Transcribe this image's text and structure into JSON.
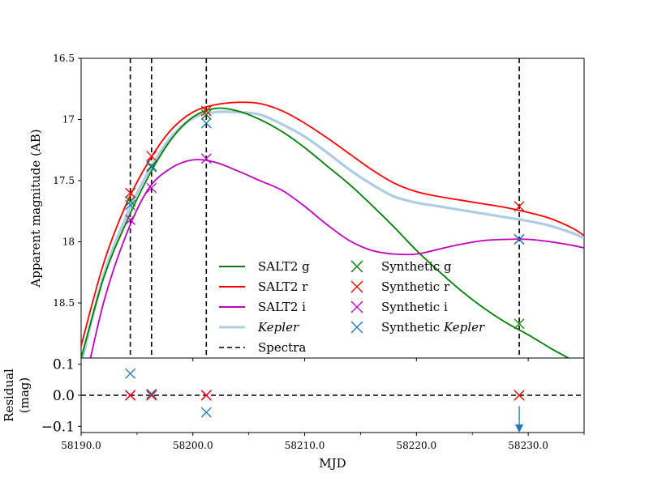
{
  "chart_data": {
    "type": "line",
    "top_panel": {
      "ylabel": "Apparent magnitude (AB)",
      "ylim": [
        18.95,
        16.5
      ],
      "yticks": [
        16.5,
        17.0,
        17.5,
        18.0,
        18.5
      ],
      "ytick_labels": [
        "16.5",
        "17",
        "17.5",
        "18",
        "18.5"
      ],
      "xlim": [
        58190,
        58235
      ],
      "series": [
        {
          "name": "SALT2 g",
          "color": "#008000",
          "x": [
            58190,
            58192,
            58194,
            58196,
            58198,
            58200,
            58202,
            58204,
            58206,
            58208,
            58210,
            58212,
            58214,
            58216,
            58218,
            58220,
            58222,
            58224,
            58226,
            58228,
            58230,
            58232,
            58234,
            58235
          ],
          "y": [
            18.95,
            18.3,
            17.85,
            17.47,
            17.17,
            16.98,
            16.91,
            16.93,
            17.0,
            17.1,
            17.23,
            17.38,
            17.53,
            17.7,
            17.88,
            18.07,
            18.24,
            18.4,
            18.54,
            18.66,
            18.76,
            18.87,
            18.97,
            19.02
          ]
        },
        {
          "name": "SALT2 r",
          "color": "#ff0000",
          "x": [
            58190,
            58192,
            58194,
            58196,
            58198,
            58200,
            58202,
            58204,
            58206,
            58208,
            58210,
            58212,
            58214,
            58216,
            58218,
            58220,
            58222,
            58224,
            58226,
            58228,
            58230,
            58232,
            58234,
            58235
          ],
          "y": [
            18.85,
            18.18,
            17.7,
            17.35,
            17.09,
            16.94,
            16.88,
            16.86,
            16.87,
            16.93,
            17.03,
            17.15,
            17.28,
            17.41,
            17.52,
            17.59,
            17.63,
            17.66,
            17.69,
            17.72,
            17.76,
            17.81,
            17.89,
            17.95
          ]
        },
        {
          "name": "SALT2 i",
          "color": "#bf00bf",
          "x": [
            58190,
            58192,
            58194,
            58196,
            58198,
            58200,
            58202,
            58204,
            58206,
            58208,
            58210,
            58212,
            58214,
            58216,
            58218,
            58220,
            58222,
            58224,
            58226,
            58228,
            58230,
            58232,
            58234,
            58235
          ],
          "y": [
            19.3,
            18.5,
            17.95,
            17.57,
            17.4,
            17.33,
            17.35,
            17.42,
            17.5,
            17.58,
            17.71,
            17.86,
            17.99,
            18.07,
            18.1,
            18.1,
            18.06,
            18.02,
            17.99,
            17.98,
            17.98,
            18.0,
            18.03,
            18.05
          ]
        },
        {
          "name": "Kepler",
          "color": "#aecde4",
          "italic": true,
          "x": [
            58190,
            58192,
            58194,
            58196,
            58198,
            58200,
            58202,
            58204,
            58206,
            58208,
            58210,
            58212,
            58214,
            58216,
            58218,
            58220,
            58222,
            58224,
            58226,
            58228,
            58230,
            58232,
            58234,
            58235
          ],
          "y": [
            19.0,
            18.28,
            17.8,
            17.43,
            17.15,
            16.99,
            16.94,
            16.94,
            16.96,
            17.04,
            17.14,
            17.27,
            17.41,
            17.53,
            17.63,
            17.68,
            17.71,
            17.74,
            17.77,
            17.8,
            17.83,
            17.87,
            17.93,
            17.97
          ]
        }
      ],
      "spectra": {
        "name": "Spectra",
        "x": [
          58194.4,
          58196.3,
          58201.2,
          58229.2
        ]
      },
      "synthetic": [
        {
          "name": "Synthetic g",
          "color": "#008000",
          "x": [
            58194.4,
            58196.3,
            58201.2,
            58229.2
          ],
          "y": [
            17.67,
            17.38,
            16.96,
            18.67
          ]
        },
        {
          "name": "Synthetic r",
          "color": "#ff0000",
          "x": [
            58194.4,
            58196.3,
            58201.2,
            58229.2
          ],
          "y": [
            17.6,
            17.3,
            16.93,
            17.71
          ]
        },
        {
          "name": "Synthetic i",
          "color": "#bf00bf",
          "x": [
            58194.4,
            58196.3,
            58201.2,
            58229.2
          ],
          "y": [
            17.82,
            17.56,
            17.32,
            17.98
          ]
        },
        {
          "name": "Synthetic Kepler",
          "color": "#1f77b4",
          "italic_word": "Kepler",
          "x": [
            58194.4,
            58196.3,
            58201.2,
            58229.2
          ],
          "y": [
            17.7,
            17.39,
            17.03,
            17.98
          ]
        }
      ],
      "legend": {
        "placement": "bottom-center",
        "col1": [
          {
            "label": "SALT2 g",
            "style": "line",
            "color": "#008000"
          },
          {
            "label": "SALT2 r",
            "style": "line",
            "color": "#ff0000"
          },
          {
            "label": "SALT2 i",
            "style": "line",
            "color": "#bf00bf"
          },
          {
            "label": "Kepler",
            "style": "line",
            "color": "#aecde4",
            "italic": true
          },
          {
            "label": "Spectra",
            "style": "dashed",
            "color": "#000000"
          }
        ],
        "col2": [
          {
            "label": "Synthetic g",
            "style": "cross",
            "color": "#008000"
          },
          {
            "label": "Synthetic r",
            "style": "cross",
            "color": "#ff0000"
          },
          {
            "label": "Synthetic i",
            "style": "cross",
            "color": "#bf00bf"
          },
          {
            "label": "Synthetic Kepler",
            "prefix": "Synthetic ",
            "italic_part": "Kepler",
            "style": "cross",
            "color": "#1f77b4"
          }
        ]
      }
    },
    "bottom_panel": {
      "ylabel_lines": [
        "Residual",
        "(mag)"
      ],
      "ylim": [
        -0.12,
        0.12
      ],
      "yticks": [
        0.1,
        0.0,
        -0.1
      ],
      "ytick_labels": [
        "0.1",
        "0.0",
        "−0.1"
      ],
      "xlabel": "MJD",
      "xlim": [
        58190,
        58235
      ],
      "xticks": [
        58190,
        58200,
        58210,
        58220,
        58230
      ],
      "xtick_labels": [
        "58190.0",
        "58200.0",
        "58210.0",
        "58220.0",
        "58230.0"
      ],
      "minor_xticks": [
        58195,
        58205,
        58215,
        58225,
        58235
      ],
      "zero_line": 0.0,
      "residuals": [
        {
          "name": "Synthetic g",
          "color": "#008000",
          "x": [
            58194.4,
            58196.3,
            58201.2,
            58229.2
          ],
          "y": [
            0.0,
            0.0,
            0.0,
            0.0
          ]
        },
        {
          "name": "Synthetic i",
          "color": "#bf00bf",
          "x": [
            58194.4,
            58196.3,
            58201.2
          ],
          "y": [
            0.0,
            0.0,
            0.0
          ]
        },
        {
          "name": "Synthetic r",
          "color": "#ff0000",
          "x": [
            58194.4,
            58196.3,
            58201.2,
            58229.2
          ],
          "y": [
            0.0,
            0.0,
            0.0,
            0.0
          ]
        },
        {
          "name": "Synthetic Kepler",
          "color": "#1f77b4",
          "x": [
            58194.4,
            58196.3,
            58201.2
          ],
          "y": [
            0.07,
            0.005,
            -0.055
          ]
        }
      ],
      "arrow": {
        "x": 58229.2,
        "y_from": -0.035,
        "y_to": -0.115,
        "color": "#1f77b4"
      }
    }
  }
}
